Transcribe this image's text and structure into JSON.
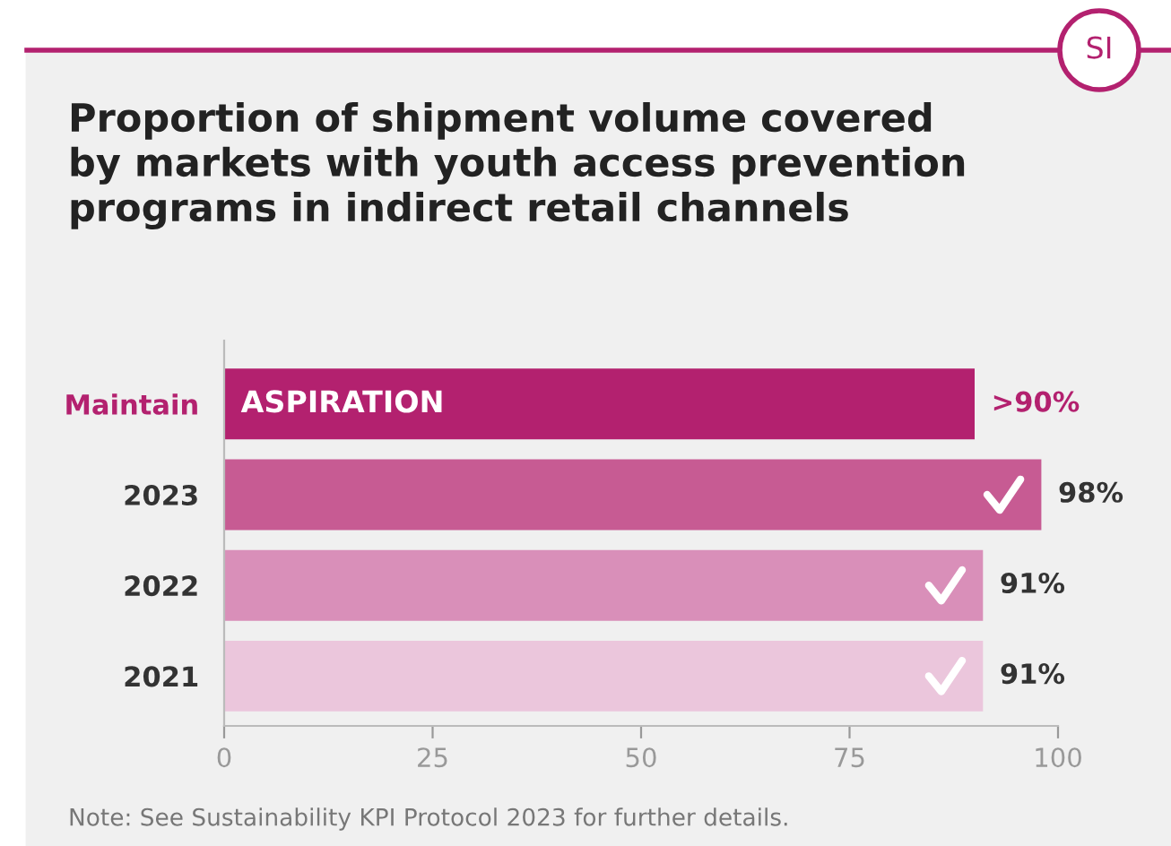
{
  "chart_data": {
    "type": "bar",
    "orientation": "horizontal",
    "title": "Proportion of shipment volume covered\nby markets with youth access prevention\nprograms in indirect retail channels",
    "categories": [
      "Maintain",
      "2023",
      "2022",
      "2021"
    ],
    "values": [
      90,
      98,
      91,
      91
    ],
    "colors": [
      "#b3216f",
      "#c75b93",
      "#d98fb9",
      "#ebc6dc"
    ],
    "value_labels": [
      ">90%",
      "98%",
      "91%",
      "91%"
    ],
    "xlim": [
      0,
      100
    ],
    "xticks": [
      0,
      25,
      50,
      75,
      100
    ],
    "grid": false,
    "annotations": [
      {
        "text": "ASPIRATION",
        "x": 0,
        "y": "Maintain"
      },
      "SI",
      "Note: See Sustainability KPI Protocol 2023 for further details."
    ]
  }
}
